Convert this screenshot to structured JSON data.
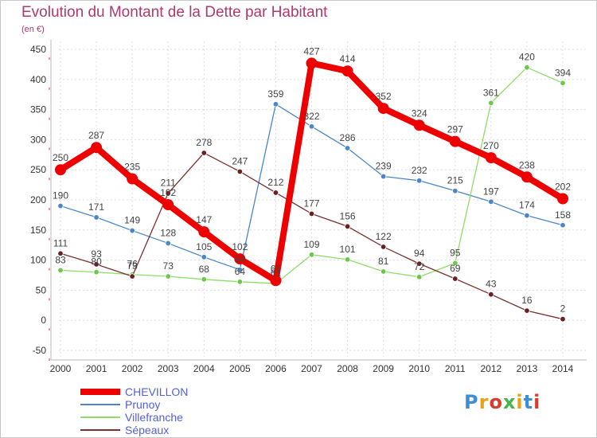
{
  "header": {
    "title": "Evolution du Montant de la Dette par Habitant",
    "unit": "(en €)"
  },
  "logo": {
    "text": "Proxiti",
    "colors": [
      "#3a8fd6",
      "#e8a21a",
      "#d93c2a",
      "#4bb34a",
      "#e8a21a",
      "#3a8fd6",
      "#d93c2a"
    ]
  },
  "chart_data": {
    "type": "line",
    "title": "Evolution du Montant de la Dette par Habitant",
    "ylabel": "(en €)",
    "xlabel": "",
    "ylim": [
      -50,
      450
    ],
    "yticks": [
      -50,
      0,
      50,
      100,
      150,
      200,
      250,
      300,
      350,
      400,
      450
    ],
    "grid": true,
    "legend_position": "bottom-left",
    "x": [
      "2000",
      "2001",
      "2002",
      "2003",
      "2004",
      "2005",
      "2006",
      "2007",
      "2008",
      "2009",
      "2010",
      "2011",
      "2012",
      "2013",
      "2014"
    ],
    "series": [
      {
        "name": "Prunoy",
        "color": "#4a86c8",
        "point_color": "#4a86c8",
        "values": [
          190,
          171,
          149,
          128,
          105,
          84,
          359,
          322,
          286,
          239,
          232,
          215,
          197,
          174,
          158
        ]
      },
      {
        "name": "Villefranche",
        "color": "#8fdc6a",
        "point_color": "#6cc84a",
        "values": [
          83,
          80,
          76,
          73,
          68,
          64,
          61,
          109,
          101,
          81,
          72,
          95,
          361,
          420,
          394
        ]
      },
      {
        "name": "Sépeaux",
        "color": "#7a3030",
        "point_color": "#6a2020",
        "values": [
          111,
          93,
          73,
          211,
          278,
          247,
          212,
          177,
          156,
          122,
          94,
          69,
          43,
          16,
          2
        ]
      },
      {
        "name": "CHEVILLON",
        "color": "#ee0000",
        "point_color": "#ee0000",
        "values": [
          250,
          287,
          235,
          192,
          147,
          102,
          66,
          427,
          414,
          352,
          324,
          297,
          270,
          238,
          202
        ]
      }
    ]
  }
}
